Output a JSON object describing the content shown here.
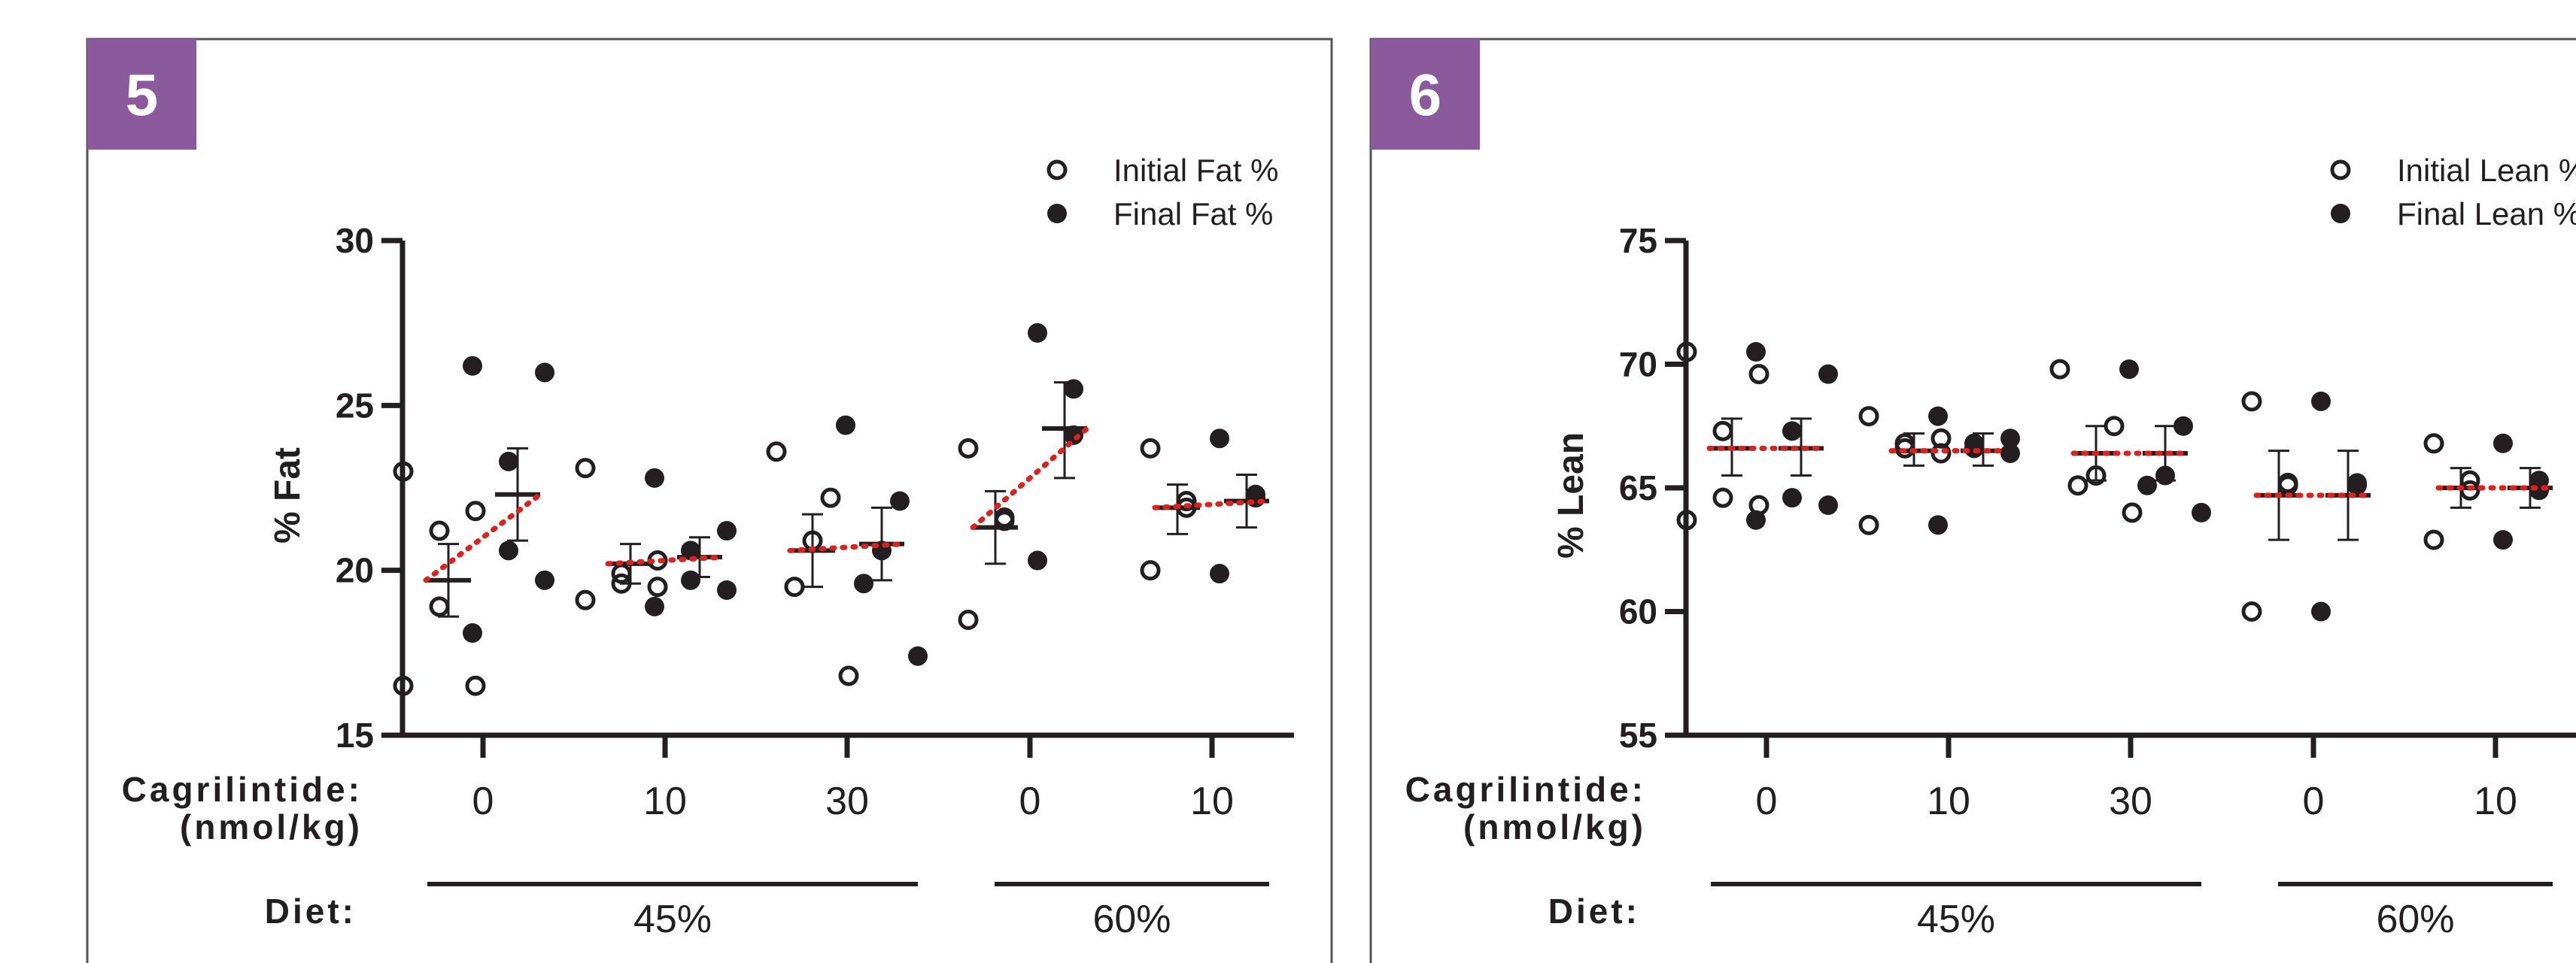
{
  "chart_data": [
    {
      "panel_label": "5",
      "type": "scatter",
      "ylabel": "% Fat",
      "ylim": [
        15,
        30
      ],
      "yticks": [
        15,
        20,
        25,
        30
      ],
      "legend": [
        "Initial Fat %",
        "Final Fat %"
      ],
      "legend_position": "top-right",
      "row_labels": {
        "dose": "Cagrilintide:",
        "dose_unit": "(nmol/kg)",
        "diet": "Diet:"
      },
      "diet_groups": [
        {
          "label": "45%",
          "span": [
            0,
            2
          ]
        },
        {
          "label": "60%",
          "span": [
            3,
            4
          ]
        }
      ],
      "groups": [
        {
          "dose": "0",
          "diet": "45%",
          "initial": {
            "points": [
              23.0,
              21.8,
              21.2,
              18.9,
              16.5,
              16.5
            ],
            "mean": 19.7,
            "sem": [
              18.6,
              20.8
            ]
          },
          "final": {
            "points": [
              26.2,
              26.0,
              23.3,
              20.6,
              19.7,
              18.1
            ],
            "mean": 22.3,
            "sem": [
              20.9,
              23.7
            ]
          }
        },
        {
          "dose": "10",
          "diet": "45%",
          "initial": {
            "points": [
              23.1,
              20.3,
              19.9,
              19.6,
              19.5,
              19.1
            ],
            "mean": 20.2,
            "sem": [
              19.6,
              20.8
            ]
          },
          "final": {
            "points": [
              22.8,
              21.2,
              20.6,
              19.7,
              19.4,
              18.9
            ],
            "mean": 20.4,
            "sem": [
              19.8,
              21.0
            ]
          }
        },
        {
          "dose": "30",
          "diet": "45%",
          "initial": {
            "points": [
              23.6,
              22.2,
              20.9,
              19.5,
              16.8
            ],
            "mean": 20.6,
            "sem": [
              19.5,
              21.7
            ]
          },
          "final": {
            "points": [
              24.4,
              22.1,
              20.6,
              19.6,
              17.4
            ],
            "mean": 20.8,
            "sem": [
              19.7,
              21.9
            ]
          }
        },
        {
          "dose": "0",
          "diet": "60%",
          "initial": {
            "points": [
              23.7,
              21.6,
              21.5,
              18.5
            ],
            "mean": 21.3,
            "sem": [
              20.2,
              22.4
            ]
          },
          "final": {
            "points": [
              27.2,
              25.5,
              24.1,
              20.3
            ],
            "mean": 24.3,
            "sem": [
              22.8,
              25.7
            ]
          }
        },
        {
          "dose": "10",
          "diet": "60%",
          "initial": {
            "points": [
              23.7,
              22.1,
              21.9,
              20.0
            ],
            "mean": 21.9,
            "sem": [
              21.1,
              22.6
            ]
          },
          "final": {
            "points": [
              24.0,
              22.3,
              22.2,
              19.9
            ],
            "mean": 22.1,
            "sem": [
              21.3,
              22.9
            ]
          }
        }
      ]
    },
    {
      "panel_label": "6",
      "type": "scatter",
      "ylabel": "% Lean",
      "ylim": [
        55,
        75
      ],
      "yticks": [
        55,
        60,
        65,
        70,
        75
      ],
      "legend": [
        "Initial Lean %",
        "Final Lean %"
      ],
      "legend_position": "top-right",
      "row_labels": {
        "dose": "Cagrilintide:",
        "dose_unit": "(nmol/kg)",
        "diet": "Diet:"
      },
      "diet_groups": [
        {
          "label": "45%",
          "span": [
            0,
            2
          ]
        },
        {
          "label": "60%",
          "span": [
            3,
            4
          ]
        }
      ],
      "groups": [
        {
          "dose": "0",
          "diet": "45%",
          "initial": {
            "points": [
              70.5,
              69.6,
              67.3,
              64.6,
              64.3,
              63.7
            ],
            "mean": 66.6,
            "sem": [
              65.5,
              67.8
            ]
          },
          "final": {
            "points": [
              70.5,
              69.6,
              67.3,
              64.6,
              64.3,
              63.7
            ],
            "mean": 66.6,
            "sem": [
              65.5,
              67.8
            ]
          }
        },
        {
          "dose": "10",
          "diet": "45%",
          "initial": {
            "points": [
              67.9,
              67.0,
              66.8,
              66.6,
              66.4,
              63.5
            ],
            "mean": 66.5,
            "sem": [
              65.9,
              67.2
            ]
          },
          "final": {
            "points": [
              67.9,
              67.0,
              66.8,
              66.6,
              66.4,
              63.5
            ],
            "mean": 66.5,
            "sem": [
              65.9,
              67.2
            ]
          }
        },
        {
          "dose": "30",
          "diet": "45%",
          "initial": {
            "points": [
              69.8,
              67.5,
              65.5,
              65.1,
              64.0
            ],
            "mean": 66.4,
            "sem": [
              65.3,
              67.5
            ]
          },
          "final": {
            "points": [
              69.8,
              67.5,
              65.5,
              65.1,
              64.0
            ],
            "mean": 66.4,
            "sem": [
              65.3,
              67.5
            ]
          }
        },
        {
          "dose": "0",
          "diet": "60%",
          "initial": {
            "points": [
              68.5,
              65.2,
              65.1,
              60.0
            ],
            "mean": 64.7,
            "sem": [
              62.9,
              66.5
            ]
          },
          "final": {
            "points": [
              68.5,
              65.2,
              65.1,
              60.0
            ],
            "mean": 64.7,
            "sem": [
              62.9,
              66.5
            ]
          }
        },
        {
          "dose": "10",
          "diet": "60%",
          "initial": {
            "points": [
              66.8,
              65.3,
              64.9,
              62.9
            ],
            "mean": 65.0,
            "sem": [
              64.2,
              65.8
            ]
          },
          "final": {
            "points": [
              66.8,
              65.3,
              64.9,
              62.9
            ],
            "mean": 65.0,
            "sem": [
              64.2,
              65.8
            ]
          }
        }
      ]
    }
  ],
  "colors": {
    "panel_badge": "#8a5a9c",
    "ink": "#231f20",
    "trend_line": "#e0201b",
    "frame": "#555555",
    "background": "#ffffff"
  },
  "icons": {
    "initial_marker": "open-circle",
    "final_marker": "filled-circle"
  }
}
